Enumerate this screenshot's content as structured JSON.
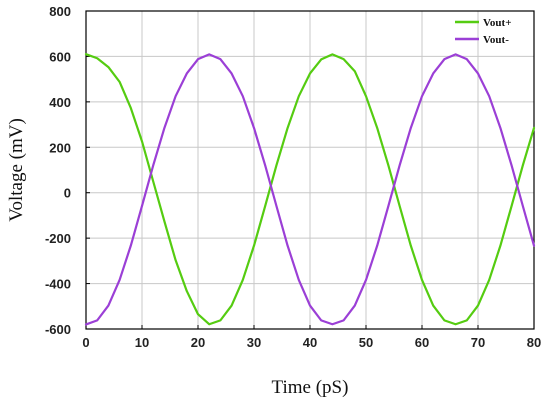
{
  "chart_data": {
    "type": "line",
    "title": "",
    "xlabel": "Time (pS)",
    "ylabel": "Voltage (mV)",
    "xlim": [
      0,
      80
    ],
    "ylim": [
      -600,
      800
    ],
    "xticks": [
      0,
      10,
      20,
      30,
      40,
      50,
      60,
      70,
      80
    ],
    "yticks": [
      -600,
      -400,
      -200,
      0,
      200,
      400,
      600,
      800
    ],
    "grid": true,
    "legend_position": "top-right",
    "x": [
      0,
      2,
      4,
      6,
      8,
      10,
      12,
      14,
      16,
      18,
      20,
      22,
      24,
      26,
      28,
      30,
      32,
      34,
      36,
      38,
      40,
      42,
      44,
      46,
      48,
      50,
      52,
      54,
      56,
      58,
      60,
      62,
      64,
      66,
      68,
      70,
      72,
      74,
      76,
      78,
      80
    ],
    "series": [
      {
        "name": "Vout+",
        "color": "#55cc11",
        "values": [
          610,
          592,
          553,
          488,
          373,
          226,
          50,
          -126,
          -297,
          -433,
          -535,
          -579,
          -562,
          -497,
          -384,
          -233,
          -58,
          120,
          285,
          425,
          525,
          587,
          609,
          588,
          535,
          425,
          285,
          120,
          -58,
          -233,
          -384,
          -497,
          -562,
          -579,
          -562,
          -497,
          -384,
          -233,
          -58,
          120,
          285
        ]
      },
      {
        "name": "Vout-",
        "color": "#9b3fd6",
        "values": [
          -580,
          -562,
          -497,
          -384,
          -233,
          -58,
          120,
          285,
          425,
          525,
          588,
          609,
          588,
          525,
          425,
          285,
          120,
          -58,
          -233,
          -384,
          -497,
          -562,
          -579,
          -562,
          -497,
          -384,
          -233,
          -58,
          120,
          285,
          425,
          525,
          588,
          609,
          588,
          525,
          425,
          285,
          120,
          -58,
          -233
        ]
      }
    ]
  }
}
